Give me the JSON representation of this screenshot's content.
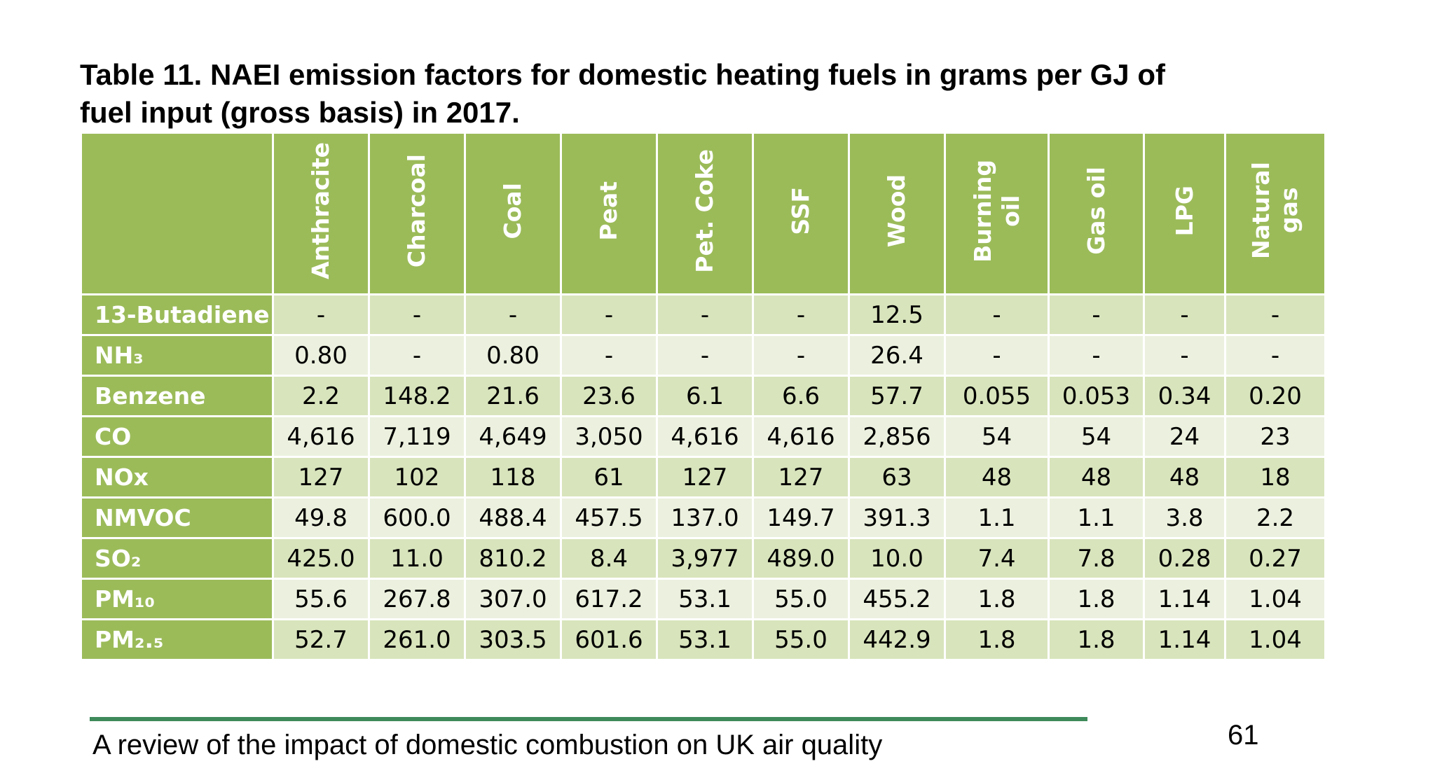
{
  "title_line1": "Table 11. NAEI emission factors for domestic heating fuels in grams per GJ of",
  "title_line2": "fuel input (gross basis) in 2017.",
  "columns": [
    "Anthracite",
    "Charcoal",
    "Coal",
    "Peat",
    "Pet. Coke",
    "SSF",
    "Wood",
    "Burning\noil",
    "Gas oil",
    "LPG",
    "Natural\ngas"
  ],
  "rows": [
    {
      "label": "13-Butadiene",
      "values": [
        "-",
        "-",
        "-",
        "-",
        "-",
        "-",
        "12.5",
        "-",
        "-",
        "-",
        "-"
      ]
    },
    {
      "label": "NH₃",
      "values": [
        "0.80",
        "-",
        "0.80",
        "-",
        "-",
        "-",
        "26.4",
        "-",
        "-",
        "-",
        "-"
      ]
    },
    {
      "label": "Benzene",
      "values": [
        "2.2",
        "148.2",
        "21.6",
        "23.6",
        "6.1",
        "6.6",
        "57.7",
        "0.055",
        "0.053",
        "0.34",
        "0.20"
      ]
    },
    {
      "label": "CO",
      "values": [
        "4,616",
        "7,119",
        "4,649",
        "3,050",
        "4,616",
        "4,616",
        "2,856",
        "54",
        "54",
        "24",
        "23"
      ]
    },
    {
      "label": "NOx",
      "values": [
        "127",
        "102",
        "118",
        "61",
        "127",
        "127",
        "63",
        "48",
        "48",
        "48",
        "18"
      ]
    },
    {
      "label": "NMVOC",
      "values": [
        "49.8",
        "600.0",
        "488.4",
        "457.5",
        "137.0",
        "149.7",
        "391.3",
        "1.1",
        "1.1",
        "3.8",
        "2.2"
      ]
    },
    {
      "label": "SO₂",
      "values": [
        "425.0",
        "11.0",
        "810.2",
        "8.4",
        "3,977",
        "489.0",
        "10.0",
        "7.4",
        "7.8",
        "0.28",
        "0.27"
      ]
    },
    {
      "label": "PM₁₀",
      "values": [
        "55.6",
        "267.8",
        "307.0",
        "617.2",
        "53.1",
        "55.0",
        "455.2",
        "1.8",
        "1.8",
        "1.14",
        "1.04"
      ]
    },
    {
      "label": "PM₂.₅",
      "values": [
        "52.7",
        "261.0",
        "303.5",
        "601.6",
        "53.1",
        "55.0",
        "442.9",
        "1.8",
        "1.8",
        "1.14",
        "1.04"
      ]
    }
  ],
  "footer": {
    "text": "A review of the impact of domestic combustion on UK air quality",
    "page_number": "61"
  },
  "colors": {
    "header_green": "#9bbb59",
    "row_dark": "#d8e4bc",
    "row_light": "#ebf1de",
    "rule_green": "#3e8a5a"
  }
}
